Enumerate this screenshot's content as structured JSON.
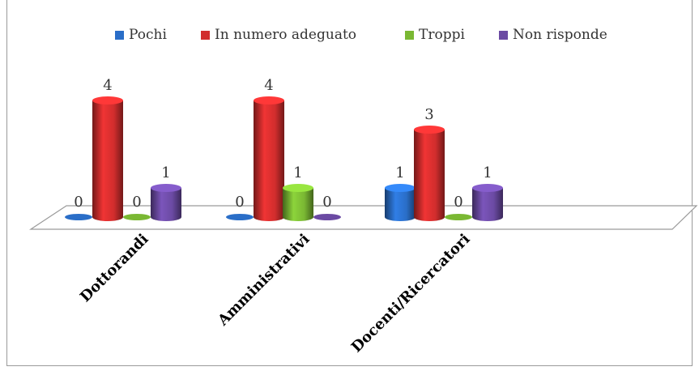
{
  "chart_data": {
    "type": "bar",
    "categories": [
      "Dottorandi",
      "Amministrativi",
      "Docenti/Ricercatori"
    ],
    "series": [
      {
        "name": "Pochi",
        "values": [
          0,
          0,
          1
        ],
        "color": "#2a6ec8"
      },
      {
        "name": "In numero adeguato",
        "values": [
          4,
          4,
          3
        ],
        "color": "#d12d2d"
      },
      {
        "name": "Troppi",
        "values": [
          0,
          1,
          0
        ],
        "color": "#7ab833"
      },
      {
        "name": "Non risponde",
        "values": [
          1,
          0,
          1
        ],
        "color": "#6b4aa3"
      }
    ],
    "legend_position": "top",
    "grid": false,
    "style": "3d-cylinder",
    "ylim": [
      0,
      4
    ]
  }
}
